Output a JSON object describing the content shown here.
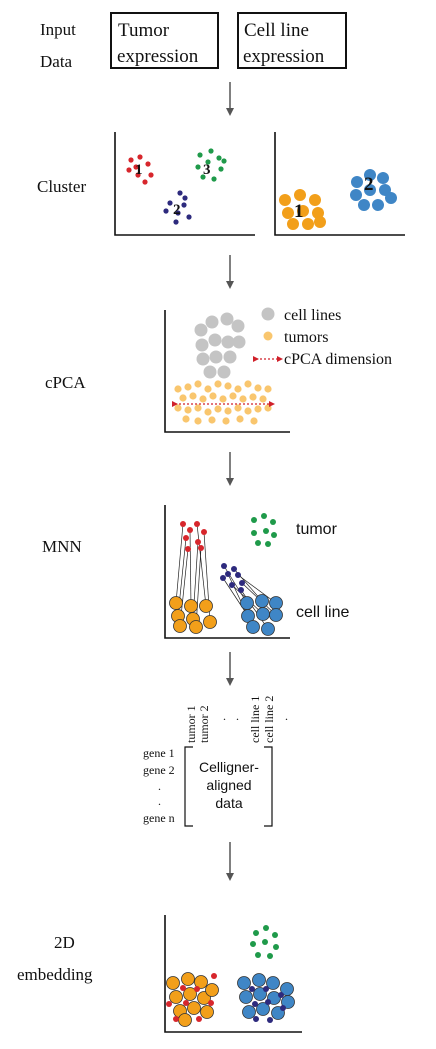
{
  "colors": {
    "red": "#d7262c",
    "green": "#1f9a4a",
    "navy": "#2d2a7d",
    "orange": "#f29f1a",
    "blue": "#3f86c6",
    "gray": "#c4c4c4",
    "light_orange": "#f9c66e",
    "dashed_red": "#d0202a"
  },
  "input": {
    "label_line1": "Input",
    "label_line2": "Data",
    "tumor_line1": "Tumor",
    "tumor_line2": "expression",
    "cell_line1": "Cell line",
    "cell_line2": "expression"
  },
  "cluster": {
    "label": "Cluster",
    "left_nums": [
      "1",
      "2",
      "3"
    ],
    "right_nums": [
      "1",
      "2"
    ]
  },
  "cpca": {
    "label": "cPCA",
    "legend": [
      "cell lines",
      "tumors",
      "cPCA dimension"
    ]
  },
  "mnn": {
    "label": "MNN",
    "tumor_label": "tumor",
    "cell_line_label": "cell line"
  },
  "matrix": {
    "columns": [
      "tumor 1",
      "tumor 2",
      "cell line 1",
      "cell line 2"
    ],
    "col_dots": [
      ".",
      ".",
      "."
    ],
    "rows": [
      "gene 1",
      "gene 2",
      "gene n"
    ],
    "row_dots": [
      ".",
      "."
    ],
    "center_text": [
      "Celligner-",
      "aligned",
      "data"
    ]
  },
  "embedding": {
    "label_line1": "2D",
    "label_line2": "embedding"
  }
}
